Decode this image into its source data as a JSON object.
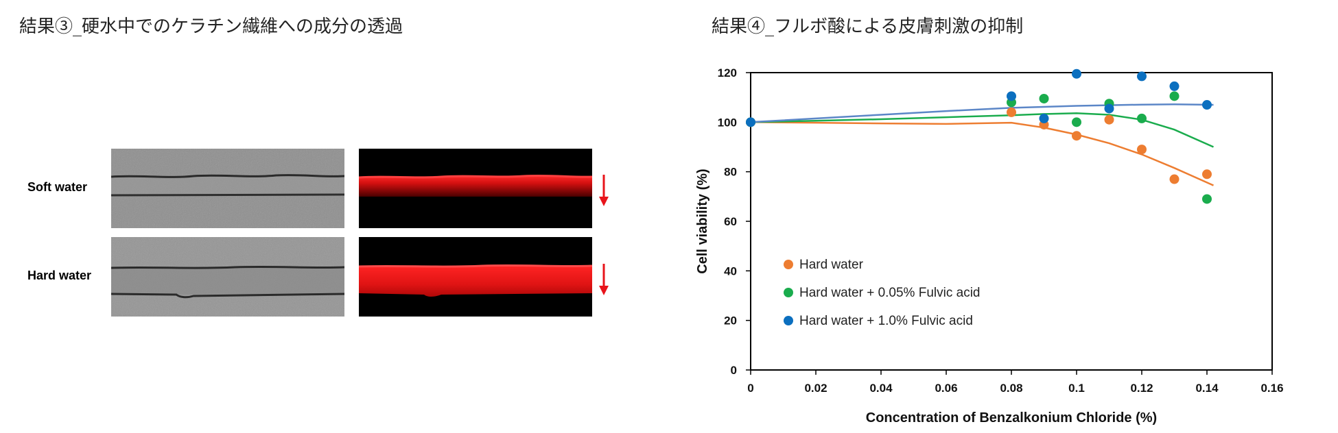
{
  "headings": {
    "result3": "結果③_硬水中でのケラチン繊維への成分の透過",
    "result4": "結果④_フルボ酸による皮膚刺激の抑制"
  },
  "micrographs": {
    "rows": [
      {
        "label": "Soft water"
      },
      {
        "label": "Hard water"
      }
    ],
    "arrow_color": "#e8141b",
    "fluorescence_color": "#ff1a1a"
  },
  "chart_data": {
    "type": "scatter",
    "xlabel": "Concentration of Benzalkonium Chloride (%)",
    "ylabel": "Cell viability (%)",
    "xlim": [
      0,
      0.16
    ],
    "ylim": [
      0,
      120
    ],
    "xticks": [
      "0",
      "0.02",
      "0.04",
      "0.06",
      "0.08",
      "0.1",
      "0.12",
      "0.14",
      "0.16"
    ],
    "yticks": [
      "0",
      "20",
      "40",
      "60",
      "80",
      "100",
      "120"
    ],
    "legend_position": "bottom-left",
    "series": [
      {
        "name": "Hard water",
        "color": "#ed7d31",
        "points": [
          [
            0,
            100
          ],
          [
            0.08,
            104
          ],
          [
            0.09,
            99
          ],
          [
            0.1,
            94.5
          ],
          [
            0.11,
            101
          ],
          [
            0.12,
            89
          ],
          [
            0.13,
            77
          ],
          [
            0.14,
            79
          ]
        ],
        "trend": [
          [
            0,
            100
          ],
          [
            0.02,
            99.8
          ],
          [
            0.04,
            99.5
          ],
          [
            0.06,
            99.3
          ],
          [
            0.08,
            99.8
          ],
          [
            0.09,
            97.8
          ],
          [
            0.1,
            95
          ],
          [
            0.11,
            91.5
          ],
          [
            0.12,
            87
          ],
          [
            0.13,
            81.5
          ],
          [
            0.142,
            74.5
          ]
        ]
      },
      {
        "name": "Hard water + 0.05% Fulvic acid",
        "color": "#1aac4d",
        "points": [
          [
            0,
            100
          ],
          [
            0.08,
            108
          ],
          [
            0.09,
            109.5
          ],
          [
            0.1,
            100
          ],
          [
            0.11,
            107.5
          ],
          [
            0.12,
            101.5
          ],
          [
            0.13,
            110.5
          ],
          [
            0.14,
            69
          ]
        ],
        "trend": [
          [
            0,
            100
          ],
          [
            0.02,
            100.6
          ],
          [
            0.04,
            101.2
          ],
          [
            0.06,
            102
          ],
          [
            0.08,
            102.8
          ],
          [
            0.09,
            103.3
          ],
          [
            0.1,
            103.6
          ],
          [
            0.11,
            103
          ],
          [
            0.12,
            101
          ],
          [
            0.13,
            97
          ],
          [
            0.142,
            90
          ]
        ]
      },
      {
        "name": "Hard water + 1.0% Fulvic acid",
        "color": "#0b6fbf",
        "points": [
          [
            0,
            100
          ],
          [
            0.08,
            110.5
          ],
          [
            0.09,
            101.5
          ],
          [
            0.1,
            119.5
          ],
          [
            0.11,
            105.5
          ],
          [
            0.12,
            118.5
          ],
          [
            0.13,
            114.5
          ],
          [
            0.14,
            107
          ]
        ],
        "trend": [
          [
            0,
            100
          ],
          [
            0.02,
            101.5
          ],
          [
            0.04,
            103
          ],
          [
            0.06,
            104.5
          ],
          [
            0.08,
            105.8
          ],
          [
            0.1,
            106.6
          ],
          [
            0.12,
            107.1
          ],
          [
            0.13,
            107.2
          ],
          [
            0.142,
            107
          ]
        ],
        "trend_color": "#5b86c7"
      }
    ]
  }
}
